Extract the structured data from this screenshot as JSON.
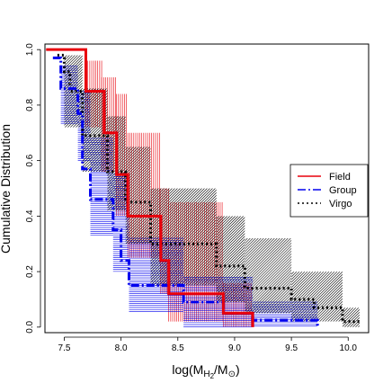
{
  "chart_data": {
    "type": "line",
    "title": "",
    "xlabel_base": "log(M",
    "xlabel_sub1": "H",
    "xlabel_sub2": "2",
    "xlabel_mid": "/M",
    "xlabel_sym": "⊙",
    "xlabel_end": ")",
    "ylabel": "Cumulative Distribution",
    "xlim": [
      7.33,
      10.18
    ],
    "ylim": [
      -0.02,
      1.02
    ],
    "xticks": [
      {
        "value": 7.5,
        "label": "7.5"
      },
      {
        "value": 8.0,
        "label": "8.0"
      },
      {
        "value": 8.5,
        "label": "8.5"
      },
      {
        "value": 9.0,
        "label": "9.0"
      },
      {
        "value": 9.5,
        "label": "9.5"
      },
      {
        "value": 10.0,
        "label": "10.0"
      }
    ],
    "yticks": [
      {
        "value": 0.0,
        "label": "0.0"
      },
      {
        "value": 0.2,
        "label": "0.2"
      },
      {
        "value": 0.4,
        "label": "0.4"
      },
      {
        "value": 0.6,
        "label": "0.6"
      },
      {
        "value": 0.8,
        "label": "0.8"
      },
      {
        "value": 1.0,
        "label": "1.0"
      }
    ],
    "legend_position": "right",
    "series": [
      {
        "name": "Field",
        "color": "#e8000b",
        "style": "solid",
        "band_style": "vertical",
        "steps": [
          [
            7.34,
            1.0
          ],
          [
            7.69,
            1.0
          ],
          [
            7.69,
            0.85
          ],
          [
            7.85,
            0.85
          ],
          [
            7.85,
            0.7
          ],
          [
            7.96,
            0.7
          ],
          [
            7.96,
            0.55
          ],
          [
            8.06,
            0.55
          ],
          [
            8.06,
            0.4
          ],
          [
            8.35,
            0.4
          ],
          [
            8.35,
            0.24
          ],
          [
            8.42,
            0.24
          ],
          [
            8.42,
            0.12
          ],
          [
            8.9,
            0.12
          ],
          [
            8.9,
            0.05
          ],
          [
            9.16,
            0.05
          ],
          [
            9.16,
            0.0
          ]
        ],
        "band": [
          {
            "x0": 7.69,
            "x1": 7.83,
            "lo": 0.72,
            "hi": 0.96
          },
          {
            "x0": 7.83,
            "x1": 7.96,
            "lo": 0.56,
            "hi": 0.9
          },
          {
            "x0": 7.96,
            "x1": 8.06,
            "lo": 0.4,
            "hi": 0.84
          },
          {
            "x0": 8.06,
            "x1": 8.35,
            "lo": 0.25,
            "hi": 0.7
          },
          {
            "x0": 8.35,
            "x1": 8.42,
            "lo": 0.12,
            "hi": 0.5
          },
          {
            "x0": 8.42,
            "x1": 8.9,
            "lo": 0.02,
            "hi": 0.45
          },
          {
            "x0": 8.9,
            "x1": 9.16,
            "lo": 0.0,
            "hi": 0.16
          }
        ]
      },
      {
        "name": "Group",
        "color": "#0000ee",
        "style": "dashdot",
        "band_style": "horizontal",
        "steps": [
          [
            7.4,
            0.97
          ],
          [
            7.47,
            0.97
          ],
          [
            7.47,
            0.86
          ],
          [
            7.62,
            0.86
          ],
          [
            7.62,
            0.77
          ],
          [
            7.66,
            0.77
          ],
          [
            7.66,
            0.57
          ],
          [
            7.73,
            0.57
          ],
          [
            7.73,
            0.46
          ],
          [
            7.93,
            0.46
          ],
          [
            7.93,
            0.35
          ],
          [
            8.0,
            0.35
          ],
          [
            8.0,
            0.24
          ],
          [
            8.07,
            0.24
          ],
          [
            8.07,
            0.15
          ],
          [
            8.55,
            0.15
          ],
          [
            8.55,
            0.09
          ],
          [
            8.9,
            0.09
          ],
          [
            8.9,
            0.05
          ],
          [
            9.16,
            0.05
          ],
          [
            9.16,
            0.025
          ],
          [
            9.73,
            0.025
          ],
          [
            9.73,
            0.0
          ]
        ],
        "band": [
          {
            "x0": 7.47,
            "x1": 7.62,
            "lo": 0.73,
            "hi": 0.94
          },
          {
            "x0": 7.62,
            "x1": 7.73,
            "lo": 0.6,
            "hi": 0.85
          },
          {
            "x0": 7.73,
            "x1": 7.93,
            "lo": 0.33,
            "hi": 0.68
          },
          {
            "x0": 7.93,
            "x1": 8.07,
            "lo": 0.2,
            "hi": 0.55
          },
          {
            "x0": 8.07,
            "x1": 8.55,
            "lo": 0.05,
            "hi": 0.32
          },
          {
            "x0": 8.55,
            "x1": 9.16,
            "lo": 0.0,
            "hi": 0.18
          },
          {
            "x0": 9.16,
            "x1": 9.73,
            "lo": 0.0,
            "hi": 0.09
          }
        ]
      },
      {
        "name": "Virgo",
        "color": "#000000",
        "style": "dotted",
        "band_style": "diagonal",
        "steps": [
          [
            7.44,
            0.98
          ],
          [
            7.5,
            0.98
          ],
          [
            7.5,
            0.92
          ],
          [
            7.55,
            0.92
          ],
          [
            7.55,
            0.85
          ],
          [
            7.66,
            0.85
          ],
          [
            7.66,
            0.69
          ],
          [
            7.88,
            0.69
          ],
          [
            7.88,
            0.56
          ],
          [
            8.04,
            0.56
          ],
          [
            8.04,
            0.45
          ],
          [
            8.26,
            0.45
          ],
          [
            8.26,
            0.3
          ],
          [
            8.84,
            0.3
          ],
          [
            8.84,
            0.22
          ],
          [
            9.09,
            0.22
          ],
          [
            9.09,
            0.14
          ],
          [
            9.5,
            0.14
          ],
          [
            9.5,
            0.1
          ],
          [
            9.7,
            0.1
          ],
          [
            9.7,
            0.07
          ],
          [
            9.95,
            0.07
          ],
          [
            9.95,
            0.02
          ],
          [
            10.1,
            0.02
          ]
        ],
        "band": [
          {
            "x0": 7.5,
            "x1": 7.66,
            "lo": 0.72,
            "hi": 0.98
          },
          {
            "x0": 7.66,
            "x1": 7.88,
            "lo": 0.56,
            "hi": 0.86
          },
          {
            "x0": 7.88,
            "x1": 8.04,
            "lo": 0.42,
            "hi": 0.76
          },
          {
            "x0": 8.04,
            "x1": 8.26,
            "lo": 0.3,
            "hi": 0.65
          },
          {
            "x0": 8.26,
            "x1": 8.84,
            "lo": 0.15,
            "hi": 0.5
          },
          {
            "x0": 8.84,
            "x1": 9.09,
            "lo": 0.09,
            "hi": 0.4
          },
          {
            "x0": 9.09,
            "x1": 9.5,
            "lo": 0.05,
            "hi": 0.32
          },
          {
            "x0": 9.5,
            "x1": 9.95,
            "lo": 0.02,
            "hi": 0.2
          },
          {
            "x0": 9.95,
            "x1": 10.1,
            "lo": 0.0,
            "hi": 0.07
          }
        ]
      }
    ]
  }
}
